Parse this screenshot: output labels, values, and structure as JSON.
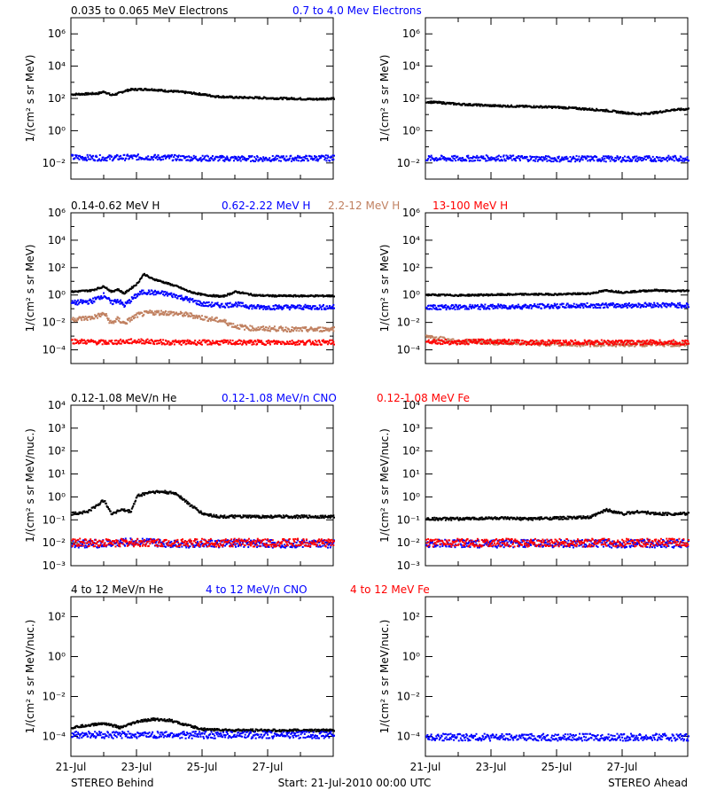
{
  "footer": {
    "left": "STEREO Behind",
    "center": "Start: 21-Jul-2010 00:00 UTC",
    "right": "STEREO Ahead"
  },
  "x_tick_labels": [
    "21-Jul",
    "23-Jul",
    "25-Jul",
    "27-Jul"
  ],
  "colors": {
    "black": "#000000",
    "blue": "#0000ff",
    "tan": "#c08060",
    "red": "#ff0000"
  },
  "chart_data": [
    {
      "row": "electrons",
      "type": "scatter",
      "legend": [
        {
          "text": "0.035 to 0.065 MeV Electrons",
          "color": "#000000"
        },
        {
          "text": "0.7 to 4.0 Mev Electrons",
          "color": "#0000ff"
        }
      ],
      "ylabel": "1/(cm² s sr MeV)",
      "y_scale": "log",
      "ylim_exp": [
        -3,
        7
      ],
      "y_tick_exponents": [
        -2,
        0,
        2,
        4,
        6
      ],
      "x_days": [
        0,
        8
      ],
      "panels": [
        {
          "spacecraft": "STEREO Behind",
          "series": [
            {
              "name": "0.035 to 0.065 MeV Electrons",
              "color": "#000000",
              "x": [
                0,
                0.8,
                1.0,
                1.2,
                1.4,
                1.6,
                1.8,
                2.2,
                2.5,
                2.8,
                3.2,
                3.6,
                4.0,
                4.4,
                5.0,
                5.6,
                6.2,
                6.8,
                7.4,
                8.0
              ],
              "y": [
                200,
                230,
                300,
                180,
                220,
                320,
                400,
                420,
                400,
                340,
                300,
                250,
                200,
                150,
                130,
                125,
                115,
                110,
                100,
                115
              ]
            },
            {
              "name": "0.7 to 4.0 Mev Electrons",
              "color": "#0000ff",
              "x": [
                0,
                1,
                2,
                3,
                4,
                5,
                6,
                7,
                8
              ],
              "y": [
                0.025,
                0.023,
                0.026,
                0.024,
                0.022,
                0.021,
                0.021,
                0.022,
                0.023
              ]
            }
          ]
        },
        {
          "spacecraft": "STEREO Ahead",
          "series": [
            {
              "name": "0.035 to 0.065 MeV Electrons",
              "color": "#000000",
              "x": [
                0,
                0.5,
                1,
                1.5,
                2,
                2.5,
                3,
                3.5,
                4,
                4.5,
                5,
                5.5,
                6,
                6.5,
                7,
                7.5,
                8
              ],
              "y": [
                70,
                60,
                50,
                45,
                40,
                38,
                36,
                34,
                32,
                28,
                24,
                20,
                15,
                12,
                15,
                22,
                25
              ]
            },
            {
              "name": "0.7 to 4.0 Mev Electrons",
              "color": "#0000ff",
              "x": [
                0,
                1,
                2,
                3,
                4,
                5,
                6,
                7,
                8
              ],
              "y": [
                0.022,
                0.021,
                0.023,
                0.022,
                0.02,
                0.021,
                0.02,
                0.021,
                0.022
              ]
            }
          ]
        }
      ]
    },
    {
      "row": "protons",
      "type": "scatter",
      "legend": [
        {
          "text": "0.14-0.62 MeV H",
          "color": "#000000"
        },
        {
          "text": "0.62-2.22 MeV H",
          "color": "#0000ff"
        },
        {
          "text": "2.2-12 MeV H",
          "color": "#c08060"
        },
        {
          "text": "13-100 MeV H",
          "color": "#ff0000"
        }
      ],
      "ylabel": "1/(cm² s sr MeV)",
      "y_scale": "log",
      "ylim_exp": [
        -5,
        6
      ],
      "y_tick_exponents": [
        -4,
        -2,
        0,
        2,
        4,
        6
      ],
      "x_days": [
        0,
        8
      ],
      "panels": [
        {
          "spacecraft": "STEREO Behind",
          "series": [
            {
              "name": "0.14-0.62 MeV H",
              "color": "#000000",
              "x": [
                0,
                0.6,
                1.0,
                1.2,
                1.4,
                1.6,
                2.0,
                2.2,
                2.4,
                2.8,
                3.2,
                3.6,
                4.0,
                4.6,
                5.0,
                5.6,
                6.2,
                6.8,
                7.4,
                8.0
              ],
              "y": [
                2,
                2.5,
                5,
                2,
                3,
                1.5,
                8,
                40,
                20,
                10,
                5,
                2,
                1.2,
                0.9,
                2,
                1.1,
                1,
                1,
                1,
                1
              ]
            },
            {
              "name": "0.62-2.22 MeV H",
              "color": "#0000ff",
              "x": [
                0,
                0.6,
                1.0,
                1.2,
                1.4,
                1.6,
                2.0,
                2.2,
                2.4,
                2.8,
                3.2,
                3.6,
                4.0,
                4.6,
                5.0,
                5.6,
                6.2,
                6.8,
                7.4,
                8.0
              ],
              "y": [
                0.3,
                0.4,
                1.2,
                0.3,
                0.5,
                0.2,
                1.2,
                2,
                1.8,
                1.5,
                1.0,
                0.5,
                0.25,
                0.2,
                0.25,
                0.15,
                0.15,
                0.15,
                0.15,
                0.15
              ]
            },
            {
              "name": "2.2-12 MeV H",
              "color": "#c08060",
              "x": [
                0,
                0.6,
                1.0,
                1.2,
                1.4,
                1.6,
                2.0,
                2.4,
                2.8,
                3.2,
                3.6,
                4.0,
                4.6,
                5.0,
                5.6,
                6.2,
                6.8,
                7.4,
                8.0
              ],
              "y": [
                0.02,
                0.025,
                0.05,
                0.01,
                0.02,
                0.01,
                0.04,
                0.06,
                0.06,
                0.05,
                0.04,
                0.025,
                0.015,
                0.006,
                0.004,
                0.004,
                0.0035,
                0.0035,
                0.004
              ]
            },
            {
              "name": "13-100 MeV H",
              "color": "#ff0000",
              "x": [
                0,
                1,
                2,
                3,
                4,
                5,
                6,
                7,
                8
              ],
              "y": [
                0.0005,
                0.0004,
                0.0005,
                0.0004,
                0.0004,
                0.0004,
                0.0004,
                0.0004,
                0.0004
              ]
            }
          ]
        },
        {
          "spacecraft": "STEREO Ahead",
          "series": [
            {
              "name": "0.14-0.62 MeV H",
              "color": "#000000",
              "x": [
                0,
                1,
                2,
                3,
                4,
                5,
                5.5,
                6,
                6.5,
                7,
                7.5,
                8
              ],
              "y": [
                1.2,
                1.1,
                1.2,
                1.3,
                1.3,
                1.5,
                2.5,
                1.8,
                2.2,
                2.6,
                2.2,
                2.5
              ]
            },
            {
              "name": "0.62-2.22 MeV H",
              "color": "#0000ff",
              "x": [
                0,
                1,
                2,
                3,
                4,
                5,
                6,
                7,
                8
              ],
              "y": [
                0.15,
                0.15,
                0.16,
                0.17,
                0.18,
                0.2,
                0.2,
                0.22,
                0.2
              ]
            },
            {
              "name": "2.2-12 MeV H",
              "color": "#c08060",
              "x": [
                0,
                0.3,
                0.6,
                1,
                2,
                3,
                4,
                5,
                6,
                7,
                8
              ],
              "y": [
                0.0012,
                0.0008,
                0.0006,
                0.0005,
                0.0004,
                0.0004,
                0.0003,
                0.0003,
                0.0003,
                0.0003,
                0.0003
              ]
            },
            {
              "name": "13-100 MeV H",
              "color": "#ff0000",
              "x": [
                0,
                1,
                2,
                3,
                4,
                5,
                6,
                7,
                8
              ],
              "y": [
                0.0005,
                0.0004,
                0.0005,
                0.0004,
                0.0004,
                0.0004,
                0.0004,
                0.0004,
                0.0004
              ]
            }
          ]
        }
      ]
    },
    {
      "row": "heavy-ions-low",
      "type": "scatter",
      "legend": [
        {
          "text": "0.12-1.08 MeV/n He",
          "color": "#000000"
        },
        {
          "text": "0.12-1.08 MeV/n CNO",
          "color": "#0000ff"
        },
        {
          "text": "0.12-1.08 MeV Fe",
          "color": "#ff0000"
        }
      ],
      "ylabel": "1/(cm² s sr MeV/nuc.)",
      "y_scale": "log",
      "ylim_exp": [
        -3,
        4
      ],
      "y_tick_exponents": [
        -3,
        -2,
        -1,
        0,
        1,
        2,
        3,
        4
      ],
      "x_days": [
        0,
        8
      ],
      "panels": [
        {
          "spacecraft": "STEREO Behind",
          "series": [
            {
              "name": "0.12-1.08 MeV/n He",
              "color": "#000000",
              "x": [
                0,
                0.5,
                1.0,
                1.2,
                1.5,
                1.8,
                2.0,
                2.4,
                2.8,
                3.2,
                3.6,
                4.0,
                4.5,
                5,
                6,
                7,
                8
              ],
              "y": [
                0.2,
                0.25,
                0.8,
                0.2,
                0.3,
                0.25,
                1.2,
                1.8,
                1.8,
                1.5,
                0.5,
                0.2,
                0.15,
                0.15,
                0.15,
                0.15,
                0.15
              ]
            },
            {
              "name": "0.12-1.08 MeV/n CNO",
              "color": "#0000ff",
              "x": [
                0,
                1,
                2,
                3,
                4,
                5,
                6,
                7,
                8
              ],
              "y": [
                0.01,
                0.01,
                0.012,
                0.01,
                0.01,
                0.01,
                0.01,
                0.01,
                0.01
              ]
            },
            {
              "name": "0.12-1.08 MeV Fe",
              "color": "#ff0000",
              "x": [
                0,
                1,
                2,
                3,
                4,
                5,
                6,
                7,
                8
              ],
              "y": [
                0.011,
                0.011,
                0.011,
                0.011,
                0.011,
                0.011,
                0.011,
                0.011,
                0.011
              ]
            }
          ]
        },
        {
          "spacecraft": "STEREO Ahead",
          "series": [
            {
              "name": "0.12-1.08 MeV/n He",
              "color": "#000000",
              "x": [
                0,
                1,
                2,
                3,
                4,
                5,
                5.5,
                6,
                6.5,
                7,
                8
              ],
              "y": [
                0.12,
                0.12,
                0.13,
                0.12,
                0.13,
                0.14,
                0.3,
                0.2,
                0.25,
                0.2,
                0.2
              ]
            },
            {
              "name": "0.12-1.08 MeV/n CNO",
              "color": "#0000ff",
              "x": [
                0,
                1,
                2,
                3,
                4,
                5,
                6,
                7,
                8
              ],
              "y": [
                0.01,
                0.01,
                0.01,
                0.01,
                0.01,
                0.01,
                0.01,
                0.01,
                0.01
              ]
            },
            {
              "name": "0.12-1.08 MeV Fe",
              "color": "#ff0000",
              "x": [
                0,
                1,
                2,
                3,
                4,
                5,
                6,
                7,
                8
              ],
              "y": [
                0.011,
                0.011,
                0.011,
                0.011,
                0.011,
                0.011,
                0.011,
                0.011,
                0.011
              ]
            }
          ]
        }
      ]
    },
    {
      "row": "heavy-ions-high",
      "type": "scatter",
      "legend": [
        {
          "text": "4 to 12 MeV/n He",
          "color": "#000000"
        },
        {
          "text": "4 to 12 MeV/n CNO",
          "color": "#0000ff"
        },
        {
          "text": "4 to 12 MeV Fe",
          "color": "#ff0000"
        }
      ],
      "ylabel": "1/(cm² s sr MeV/nuc.)",
      "y_scale": "log",
      "ylim_exp": [
        -5,
        3
      ],
      "y_tick_exponents": [
        -4,
        -2,
        0,
        2
      ],
      "x_days": [
        0,
        8
      ],
      "panels": [
        {
          "spacecraft": "STEREO Behind",
          "series": [
            {
              "name": "4 to 12 MeV/n He",
              "color": "#000000",
              "x": [
                0,
                0.5,
                1,
                1.5,
                2,
                2.5,
                3,
                3.5,
                4,
                5,
                6,
                7,
                8
              ],
              "y": [
                0.0003,
                0.0004,
                0.0005,
                0.0003,
                0.0006,
                0.0008,
                0.0007,
                0.0004,
                0.00025,
                0.00022,
                0.00022,
                0.00022,
                0.00022
              ]
            },
            {
              "name": "4 to 12 MeV/n CNO",
              "color": "#0000ff",
              "x": [
                0,
                1,
                2,
                3,
                4,
                5,
                6,
                7,
                8
              ],
              "y": [
                0.00013,
                0.00013,
                0.00013,
                0.00013,
                0.00013,
                0.00013,
                0.00013,
                0.00013,
                0.00013
              ]
            }
          ]
        },
        {
          "spacecraft": "STEREO Ahead",
          "series": [
            {
              "name": "4 to 12 MeV/n CNO",
              "color": "#0000ff",
              "x": [
                0,
                1,
                2,
                3,
                4,
                5,
                6,
                7,
                8
              ],
              "y": [
                0.0001,
                0.0001,
                0.0001,
                0.0001,
                0.0001,
                0.0001,
                0.0001,
                0.0001,
                0.0001
              ]
            }
          ]
        }
      ]
    }
  ]
}
